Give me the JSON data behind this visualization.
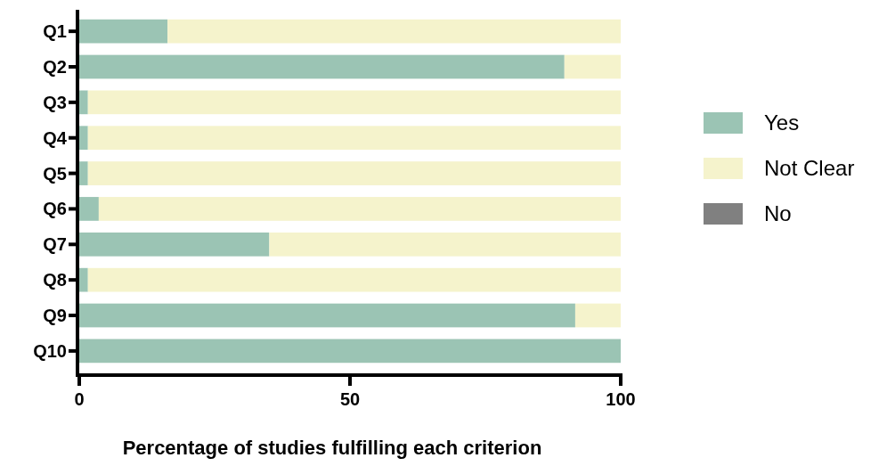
{
  "chart_data": {
    "type": "bar",
    "orientation": "horizontal",
    "stacked": true,
    "xlabel": "Percentage of studies fulfilling each criterion",
    "categories": [
      "Q1",
      "Q2",
      "Q3",
      "Q4",
      "Q5",
      "Q6",
      "Q7",
      "Q8",
      "Q9",
      "Q10"
    ],
    "series": [
      {
        "name": "Yes",
        "color": "#9bc4b4",
        "values": [
          16.3,
          89.6,
          1.6,
          1.6,
          1.6,
          3.6,
          35.1,
          1.6,
          91.6,
          100
        ]
      },
      {
        "name": "Not Clear",
        "color": "#f5f3cc",
        "values": [
          83.7,
          10.4,
          98.4,
          98.4,
          98.4,
          96.4,
          64.9,
          98.4,
          8.4,
          0
        ]
      },
      {
        "name": "No",
        "color": "#808080",
        "values": [
          0,
          0,
          0,
          0,
          0,
          0,
          0,
          0,
          0,
          0
        ]
      }
    ],
    "xlim": [
      0,
      100
    ],
    "xticks": [
      0,
      50,
      100
    ],
    "legend": "right",
    "grid": false
  }
}
